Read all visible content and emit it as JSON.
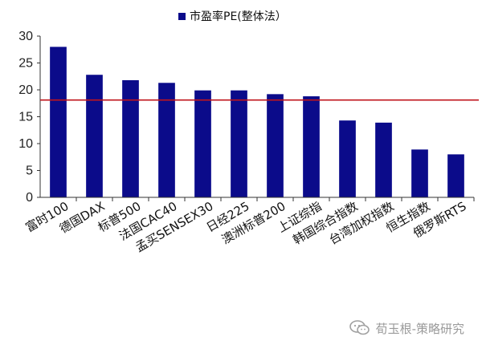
{
  "chart_data": {
    "type": "bar",
    "legend": {
      "label": "市盈率PE(整体法）",
      "position": "top"
    },
    "categories": [
      "富时100",
      "德国DAX",
      "标普500",
      "法国CAC40",
      "孟买SENSEX30",
      "日经225",
      "澳洲标普200",
      "上证综指",
      "韩国综合指数",
      "台湾加权指数",
      "恒生指数",
      "俄罗斯RTS"
    ],
    "series": [
      {
        "name": "市盈率PE(整体法）",
        "values": [
          28.0,
          22.8,
          21.8,
          21.3,
          19.9,
          19.9,
          19.2,
          18.8,
          14.3,
          13.9,
          8.9,
          8.0
        ],
        "color": "#0b0b8a"
      }
    ],
    "reference_line": {
      "value": 18.1,
      "color": "#c0141c"
    },
    "ylim": [
      0,
      30
    ],
    "yticks": [
      0,
      5,
      10,
      15,
      20,
      25,
      30
    ],
    "grid": false
  },
  "watermark": {
    "text": "荀玉根-策略研究",
    "icon": "wechat-icon"
  }
}
